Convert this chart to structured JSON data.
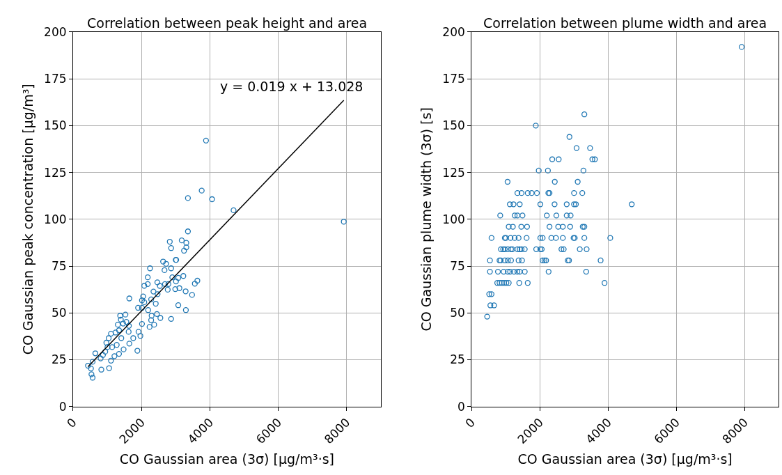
{
  "chart_data": [
    {
      "type": "scatter",
      "title": "Correlation between peak height and area",
      "xlabel": "CO Gaussian area (3σ) [μg/m³·s]",
      "ylabel": "CO Gaussian peak concentration [μg/m³]",
      "xlim": [
        0,
        9000
      ],
      "xticks": [
        0,
        2000,
        4000,
        6000,
        8000
      ],
      "ylim": [
        0,
        200
      ],
      "yticks": [
        0,
        25,
        50,
        75,
        100,
        125,
        150,
        175,
        200
      ],
      "grid": true,
      "annotations": [
        "y = 0.019 x + 13.028"
      ],
      "series": [
        {
          "marker": "circle",
          "color": "#1f77b4",
          "x": [
            437,
            571,
            538,
            571,
            524,
            652,
            827,
            1055,
            806,
            874,
            941,
            1008,
            974,
            1042,
            1109,
            1243,
            1344,
            1109,
            1210,
            1344,
            1478,
            1142,
            1277,
            1411,
            1378,
            1398,
            1532,
            1310,
            1465,
            1559,
            1633,
            1626,
            1646,
            1761,
            1915,
            1969,
            1882,
            1646,
            1902,
            2016,
            2050,
            2016,
            2083,
            2016,
            2238,
            2285,
            2372,
            2554,
            2453,
            2298,
            2197,
            2419,
            2352,
            2473,
            2285,
            2083,
            2184,
            2184,
            2251,
            2466,
            2540,
            2688,
            2769,
            2789,
            2903,
            2869,
            2675,
            2634,
            2722,
            3004,
            3017,
            3011,
            3078,
            2990,
            3111,
            3226,
            3293,
            3481,
            3562,
            3636,
            3078,
            3300,
            2869,
            2829,
            2869,
            3179,
            3313,
            3313,
            3246,
            3360,
            3360,
            3763,
            4066,
            3889,
            4695,
            7919
          ],
          "values": [
            21.8,
            23.9,
            17.2,
            15.4,
            20.3,
            28.4,
            19.7,
            20.5,
            25.7,
            27.5,
            29.3,
            31.7,
            34.1,
            36.5,
            38.9,
            39.5,
            40.7,
            24.5,
            26.9,
            28.1,
            30.5,
            31.7,
            32.9,
            36.5,
            48.5,
            46.4,
            49.1,
            43.7,
            44.3,
            45.2,
            43.1,
            39.9,
            33.6,
            36.5,
            39.9,
            37.7,
            29.8,
            57.7,
            52.7,
            52.7,
            58.8,
            56.7,
            55.7,
            44.1,
            42.5,
            46.1,
            43.7,
            47.3,
            49.4,
            48.5,
            51.5,
            54.9,
            61.4,
            60.0,
            57.2,
            64.5,
            65.4,
            69.0,
            73.8,
            66.3,
            64.4,
            65.4,
            62.4,
            65.4,
            69.0,
            73.8,
            72.8,
            77.4,
            76.2,
            78.3,
            78.3,
            66.8,
            68.7,
            62.7,
            63.2,
            69.7,
            61.5,
            59.6,
            65.6,
            67.2,
            54.1,
            51.5,
            46.8,
            88.0,
            84.6,
            88.7,
            87.4,
            85.0,
            83.2,
            93.5,
            111.3,
            115.3,
            110.7,
            142.0,
            104.8,
            98.7
          ]
        },
        {
          "type": "line",
          "marker": "none",
          "color": "#000000",
          "x": [
            437,
            7919
          ],
          "values": [
            21.3,
            163.5
          ]
        }
      ]
    },
    {
      "type": "scatter",
      "title": "Correlation between plume width and area",
      "xlabel": "CO Gaussian area (3σ) [μg/m³·s]",
      "ylabel": "CO Gaussian plume width (3σ) [s]",
      "xlim": [
        0,
        9000
      ],
      "xticks": [
        0,
        2000,
        4000,
        6000,
        8000
      ],
      "ylim": [
        0,
        200
      ],
      "yticks": [
        0,
        25,
        50,
        75,
        100,
        125,
        150,
        175,
        200
      ],
      "grid": true,
      "series": [
        {
          "marker": "circle",
          "color": "#1f77b4",
          "x": [
            457,
            551,
            659,
            517,
            585,
            753,
            820,
            887,
            954,
            1021,
            1089,
            1398,
            1646,
            3898,
            538,
            773,
            941,
            1062,
            1129,
            1243,
            1344,
            1411,
            1559,
            2258,
            3360,
            538,
            820,
            853,
            974,
            1062,
            1156,
            1378,
            1478,
            2083,
            2137,
            2184,
            2822,
            2856,
            3783,
            860,
            927,
            974,
            1062,
            1156,
            1196,
            1344,
            1411,
            1465,
            1559,
            1895,
            2016,
            2056,
            2634,
            2701,
            3172,
            3373,
            585,
            974,
            1008,
            1142,
            1263,
            1378,
            1613,
            2016,
            2083,
            2339,
            2473,
            2675,
            2990,
            3024,
            3306,
            4066,
            1089,
            1210,
            1458,
            1626,
            2285,
            2540,
            2675,
            2890,
            3259,
            3306,
            840,
            1263,
            1344,
            1492,
            2204,
            2486,
            2789,
            2903,
            1122,
            1230,
            1411,
            2016,
            2433,
            2789,
            3004,
            3058,
            4695,
            1344,
            1465,
            1646,
            1761,
            1915,
            2251,
            2285,
            3004,
            3246,
            1055,
            2439,
            3111,
            1969,
            2238,
            3279,
            2365,
            2554,
            3541,
            3615,
            3078,
            3474,
            2869,
            1882,
            3306,
            7919
          ],
          "values": [
            48,
            54,
            54,
            60,
            60,
            66,
            66,
            66,
            66,
            66,
            66,
            66,
            66,
            66,
            72,
            72,
            72,
            72,
            72,
            72,
            72,
            72,
            72,
            72,
            72,
            78,
            78,
            78,
            78,
            78,
            78,
            78,
            78,
            78,
            78,
            78,
            78,
            78,
            78,
            84,
            84,
            84,
            84,
            84,
            84,
            84,
            84,
            84,
            84,
            84,
            84,
            84,
            84,
            84,
            84,
            84,
            90,
            90,
            90,
            90,
            90,
            90,
            90,
            90,
            90,
            90,
            90,
            90,
            90,
            90,
            90,
            90,
            96,
            96,
            96,
            96,
            96,
            96,
            96,
            96,
            96,
            96,
            102,
            102,
            102,
            102,
            102,
            102,
            102,
            102,
            108,
            108,
            108,
            108,
            108,
            108,
            108,
            108,
            108,
            114,
            114,
            114,
            114,
            114,
            114,
            114,
            114,
            114,
            120,
            120,
            120,
            126,
            126,
            126,
            132,
            132,
            132,
            132,
            138,
            138,
            144,
            150,
            156,
            192
          ]
        }
      ]
    }
  ]
}
